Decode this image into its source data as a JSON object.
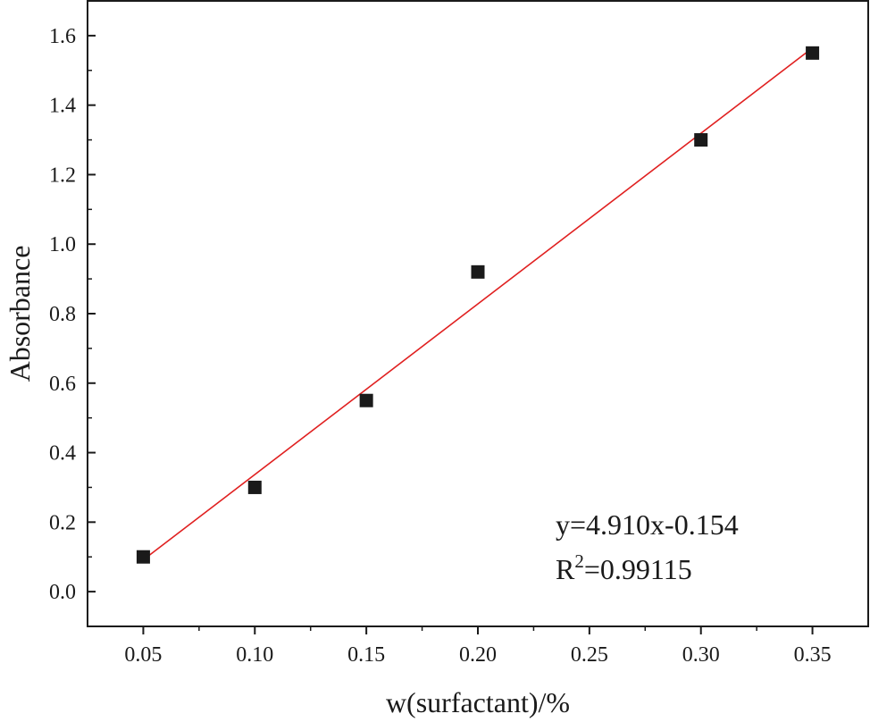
{
  "chart_data": {
    "type": "scatter",
    "title": "",
    "xlabel": "w(surfactant)/%",
    "ylabel": "Absorbance",
    "xlim": [
      0.025,
      0.375
    ],
    "ylim": [
      -0.1,
      1.7
    ],
    "x_ticks": [
      "0.05",
      "0.10",
      "0.15",
      "0.20",
      "0.25",
      "0.30",
      "0.35"
    ],
    "y_ticks": [
      "0.0",
      "0.2",
      "0.4",
      "0.6",
      "0.8",
      "1.0",
      "1.2",
      "1.4",
      "1.6"
    ],
    "grid": false,
    "series": [
      {
        "x": [
          0.05,
          0.1,
          0.15,
          0.2,
          0.3,
          0.35
        ],
        "y": [
          0.1,
          0.3,
          0.55,
          0.92,
          1.3,
          1.55
        ],
        "marker": "square",
        "color": "#1a1a1a"
      }
    ],
    "fit_line": {
      "slope": 4.91,
      "intercept": -0.154,
      "x_range": [
        0.05,
        0.35
      ],
      "color": "#e02020"
    },
    "annotations": {
      "equation": "y=4.910x-0.154",
      "r2_base": "R",
      "r2_sup": "2",
      "r2_value": "=0.99115"
    }
  }
}
